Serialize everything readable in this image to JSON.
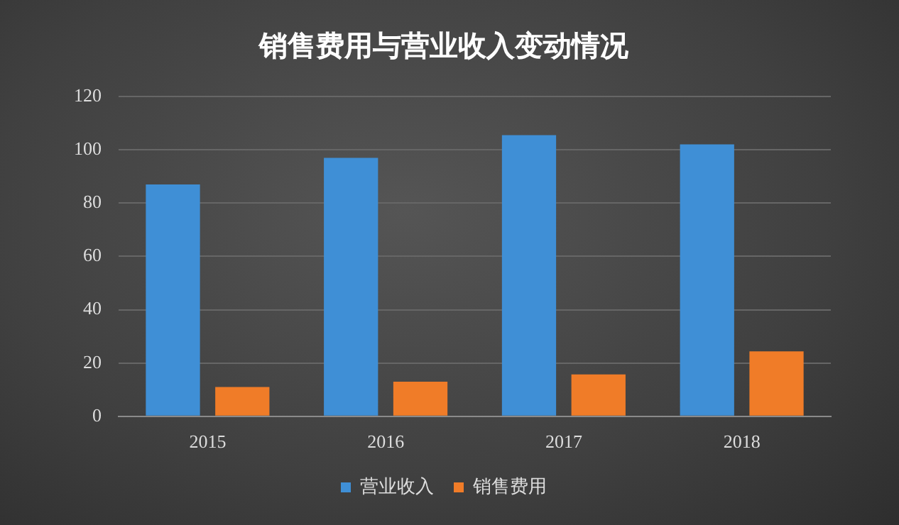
{
  "chart_data": {
    "type": "bar",
    "title": "销售费用与营业收入变动情况",
    "categories": [
      "2015",
      "2016",
      "2017",
      "2018"
    ],
    "series": [
      {
        "name": "营业收入",
        "color": "#3f8fd6",
        "values": [
          87,
          97,
          105.5,
          102
        ]
      },
      {
        "name": "销售费用",
        "color": "#f07c28",
        "values": [
          11,
          13,
          15.7,
          24.4
        ]
      }
    ],
    "ylim": [
      0,
      120
    ],
    "yticks": [
      0,
      20,
      40,
      60,
      80,
      100,
      120
    ],
    "grid": "y",
    "legend": "bottom"
  }
}
